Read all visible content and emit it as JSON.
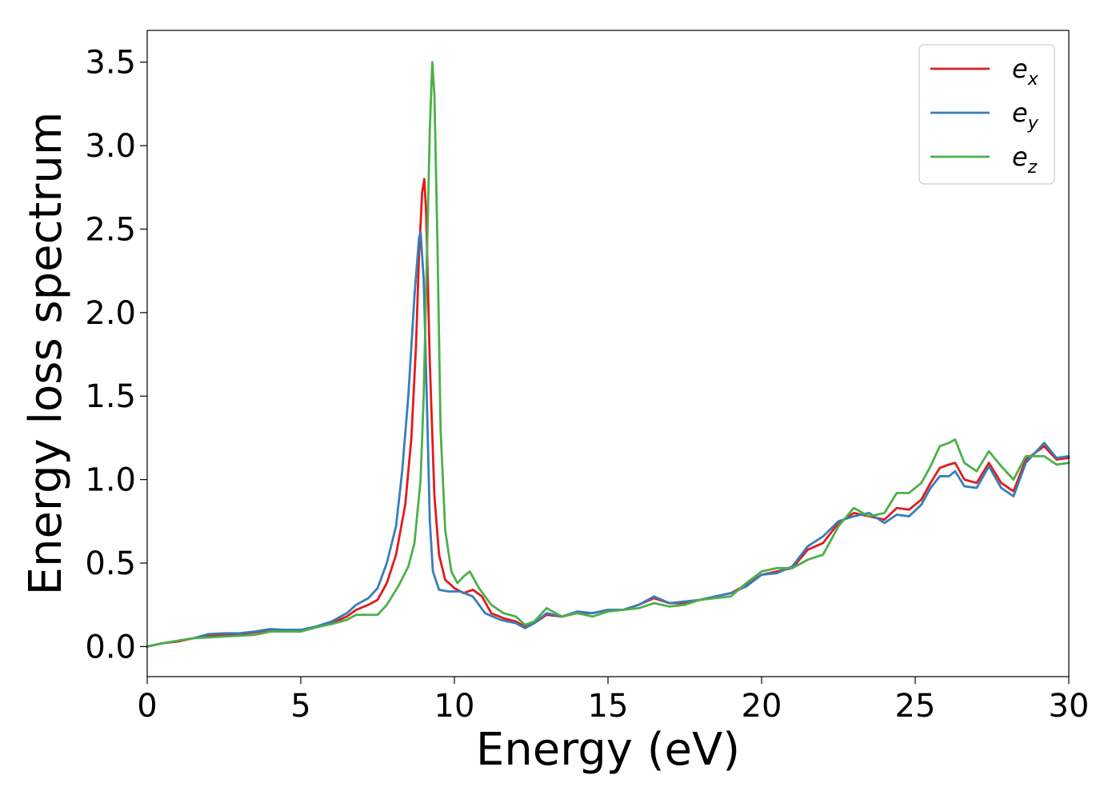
{
  "chart_data": {
    "type": "line",
    "xlabel": "Energy (eV)",
    "ylabel": "Energy loss spectrum",
    "xlim": [
      0,
      30
    ],
    "ylim": [
      -0.18,
      3.69
    ],
    "x_ticks": [
      "0",
      "5",
      "10",
      "15",
      "20",
      "25",
      "30"
    ],
    "y_ticks": [
      "0.0",
      "0.5",
      "1.0",
      "1.5",
      "2.0",
      "2.5",
      "3.0",
      "3.5"
    ],
    "grid": false,
    "legend_position": "top-right",
    "series": [
      {
        "name": "e",
        "subscript": "x",
        "color": "#e41a1c",
        "points": [
          [
            0,
            0
          ],
          [
            0.5,
            0.02
          ],
          [
            1,
            0.03
          ],
          [
            1.5,
            0.05
          ],
          [
            2,
            0.065
          ],
          [
            2.5,
            0.07
          ],
          [
            3,
            0.075
          ],
          [
            3.5,
            0.085
          ],
          [
            4,
            0.1
          ],
          [
            4.5,
            0.1
          ],
          [
            5,
            0.1
          ],
          [
            5.5,
            0.115
          ],
          [
            6,
            0.14
          ],
          [
            6.5,
            0.18
          ],
          [
            6.8,
            0.22
          ],
          [
            7.2,
            0.25
          ],
          [
            7.5,
            0.28
          ],
          [
            7.8,
            0.38
          ],
          [
            8.1,
            0.55
          ],
          [
            8.4,
            0.85
          ],
          [
            8.6,
            1.25
          ],
          [
            8.75,
            1.8
          ],
          [
            8.85,
            2.35
          ],
          [
            8.95,
            2.72
          ],
          [
            9.02,
            2.8
          ],
          [
            9.08,
            2.6
          ],
          [
            9.2,
            1.7
          ],
          [
            9.35,
            0.9
          ],
          [
            9.5,
            0.55
          ],
          [
            9.7,
            0.4
          ],
          [
            10,
            0.35
          ],
          [
            10.3,
            0.32
          ],
          [
            10.6,
            0.34
          ],
          [
            10.9,
            0.3
          ],
          [
            11.2,
            0.2
          ],
          [
            11.6,
            0.17
          ],
          [
            12,
            0.15
          ],
          [
            12.3,
            0.12
          ],
          [
            12.6,
            0.14
          ],
          [
            13,
            0.19
          ],
          [
            13.5,
            0.18
          ],
          [
            14,
            0.2
          ],
          [
            14.5,
            0.2
          ],
          [
            15,
            0.22
          ],
          [
            15.5,
            0.22
          ],
          [
            16,
            0.25
          ],
          [
            16.5,
            0.29
          ],
          [
            17,
            0.26
          ],
          [
            17.5,
            0.26
          ],
          [
            18,
            0.28
          ],
          [
            18.5,
            0.3
          ],
          [
            19,
            0.32
          ],
          [
            19.5,
            0.37
          ],
          [
            20,
            0.43
          ],
          [
            20.5,
            0.45
          ],
          [
            21,
            0.47
          ],
          [
            21.5,
            0.58
          ],
          [
            22,
            0.62
          ],
          [
            22.5,
            0.74
          ],
          [
            23,
            0.8
          ],
          [
            23.5,
            0.78
          ],
          [
            24,
            0.76
          ],
          [
            24.4,
            0.83
          ],
          [
            24.8,
            0.82
          ],
          [
            25.2,
            0.88
          ],
          [
            25.5,
            0.98
          ],
          [
            25.8,
            1.07
          ],
          [
            26.1,
            1.09
          ],
          [
            26.3,
            1.1
          ],
          [
            26.6,
            1.0
          ],
          [
            27,
            0.98
          ],
          [
            27.4,
            1.1
          ],
          [
            27.8,
            0.98
          ],
          [
            28.2,
            0.93
          ],
          [
            28.6,
            1.12
          ],
          [
            29.2,
            1.2
          ],
          [
            29.6,
            1.12
          ],
          [
            30,
            1.13
          ]
        ]
      },
      {
        "name": "e",
        "subscript": "y",
        "color": "#377eb8",
        "points": [
          [
            0,
            0
          ],
          [
            0.5,
            0.02
          ],
          [
            1,
            0.035
          ],
          [
            1.5,
            0.05
          ],
          [
            2,
            0.075
          ],
          [
            2.5,
            0.08
          ],
          [
            3,
            0.08
          ],
          [
            3.5,
            0.09
          ],
          [
            4,
            0.105
          ],
          [
            4.5,
            0.1
          ],
          [
            5,
            0.1
          ],
          [
            5.5,
            0.12
          ],
          [
            6,
            0.15
          ],
          [
            6.5,
            0.2
          ],
          [
            6.8,
            0.25
          ],
          [
            7.2,
            0.29
          ],
          [
            7.5,
            0.35
          ],
          [
            7.8,
            0.5
          ],
          [
            8.1,
            0.72
          ],
          [
            8.3,
            1.05
          ],
          [
            8.5,
            1.5
          ],
          [
            8.7,
            2.1
          ],
          [
            8.85,
            2.45
          ],
          [
            8.9,
            2.48
          ],
          [
            9.0,
            2.2
          ],
          [
            9.1,
            1.5
          ],
          [
            9.2,
            0.75
          ],
          [
            9.3,
            0.45
          ],
          [
            9.5,
            0.34
          ],
          [
            9.8,
            0.33
          ],
          [
            10.2,
            0.33
          ],
          [
            10.6,
            0.3
          ],
          [
            11,
            0.2
          ],
          [
            11.5,
            0.16
          ],
          [
            12,
            0.14
          ],
          [
            12.3,
            0.11
          ],
          [
            12.6,
            0.14
          ],
          [
            13,
            0.2
          ],
          [
            13.5,
            0.18
          ],
          [
            14,
            0.21
          ],
          [
            14.5,
            0.2
          ],
          [
            15,
            0.22
          ],
          [
            15.5,
            0.22
          ],
          [
            16,
            0.25
          ],
          [
            16.5,
            0.3
          ],
          [
            17,
            0.26
          ],
          [
            17.5,
            0.27
          ],
          [
            18,
            0.28
          ],
          [
            18.5,
            0.3
          ],
          [
            19,
            0.32
          ],
          [
            19.5,
            0.36
          ],
          [
            20,
            0.43
          ],
          [
            20.5,
            0.44
          ],
          [
            21,
            0.48
          ],
          [
            21.5,
            0.6
          ],
          [
            22,
            0.66
          ],
          [
            22.5,
            0.75
          ],
          [
            23,
            0.78
          ],
          [
            23.5,
            0.8
          ],
          [
            24,
            0.74
          ],
          [
            24.4,
            0.79
          ],
          [
            24.8,
            0.78
          ],
          [
            25.2,
            0.85
          ],
          [
            25.5,
            0.95
          ],
          [
            25.8,
            1.02
          ],
          [
            26.1,
            1.02
          ],
          [
            26.3,
            1.05
          ],
          [
            26.6,
            0.96
          ],
          [
            27,
            0.95
          ],
          [
            27.4,
            1.08
          ],
          [
            27.8,
            0.95
          ],
          [
            28.2,
            0.9
          ],
          [
            28.6,
            1.1
          ],
          [
            29.2,
            1.22
          ],
          [
            29.6,
            1.13
          ],
          [
            30,
            1.14
          ]
        ]
      },
      {
        "name": "e",
        "subscript": "z",
        "color": "#4daf4a",
        "points": [
          [
            0,
            0
          ],
          [
            0.5,
            0.02
          ],
          [
            1,
            0.035
          ],
          [
            1.5,
            0.05
          ],
          [
            2,
            0.055
          ],
          [
            2.5,
            0.06
          ],
          [
            3,
            0.065
          ],
          [
            3.5,
            0.07
          ],
          [
            4,
            0.09
          ],
          [
            4.5,
            0.09
          ],
          [
            5,
            0.09
          ],
          [
            5.5,
            0.115
          ],
          [
            6,
            0.135
          ],
          [
            6.5,
            0.16
          ],
          [
            6.8,
            0.19
          ],
          [
            7.2,
            0.19
          ],
          [
            7.5,
            0.19
          ],
          [
            7.8,
            0.25
          ],
          [
            8.2,
            0.37
          ],
          [
            8.5,
            0.48
          ],
          [
            8.7,
            0.62
          ],
          [
            8.9,
            1.0
          ],
          [
            9.0,
            1.5
          ],
          [
            9.1,
            2.3
          ],
          [
            9.2,
            3.1
          ],
          [
            9.28,
            3.5
          ],
          [
            9.35,
            3.3
          ],
          [
            9.45,
            2.4
          ],
          [
            9.55,
            1.3
          ],
          [
            9.7,
            0.7
          ],
          [
            9.9,
            0.45
          ],
          [
            10.1,
            0.38
          ],
          [
            10.3,
            0.42
          ],
          [
            10.5,
            0.45
          ],
          [
            10.8,
            0.35
          ],
          [
            11.2,
            0.25
          ],
          [
            11.6,
            0.2
          ],
          [
            12,
            0.18
          ],
          [
            12.3,
            0.13
          ],
          [
            12.6,
            0.15
          ],
          [
            13,
            0.23
          ],
          [
            13.5,
            0.18
          ],
          [
            14,
            0.2
          ],
          [
            14.5,
            0.18
          ],
          [
            15,
            0.21
          ],
          [
            15.5,
            0.22
          ],
          [
            16,
            0.23
          ],
          [
            16.5,
            0.26
          ],
          [
            17,
            0.24
          ],
          [
            17.5,
            0.25
          ],
          [
            18,
            0.28
          ],
          [
            18.5,
            0.29
          ],
          [
            19,
            0.3
          ],
          [
            19.5,
            0.38
          ],
          [
            20,
            0.45
          ],
          [
            20.5,
            0.47
          ],
          [
            21,
            0.47
          ],
          [
            21.5,
            0.52
          ],
          [
            22,
            0.55
          ],
          [
            22.5,
            0.72
          ],
          [
            23,
            0.83
          ],
          [
            23.5,
            0.78
          ],
          [
            24,
            0.8
          ],
          [
            24.4,
            0.92
          ],
          [
            24.8,
            0.92
          ],
          [
            25.2,
            0.98
          ],
          [
            25.5,
            1.08
          ],
          [
            25.8,
            1.2
          ],
          [
            26.1,
            1.22
          ],
          [
            26.3,
            1.24
          ],
          [
            26.6,
            1.1
          ],
          [
            27,
            1.05
          ],
          [
            27.4,
            1.17
          ],
          [
            27.8,
            1.08
          ],
          [
            28.2,
            1.0
          ],
          [
            28.6,
            1.14
          ],
          [
            29.2,
            1.14
          ],
          [
            29.6,
            1.09
          ],
          [
            30,
            1.1
          ]
        ]
      }
    ]
  }
}
